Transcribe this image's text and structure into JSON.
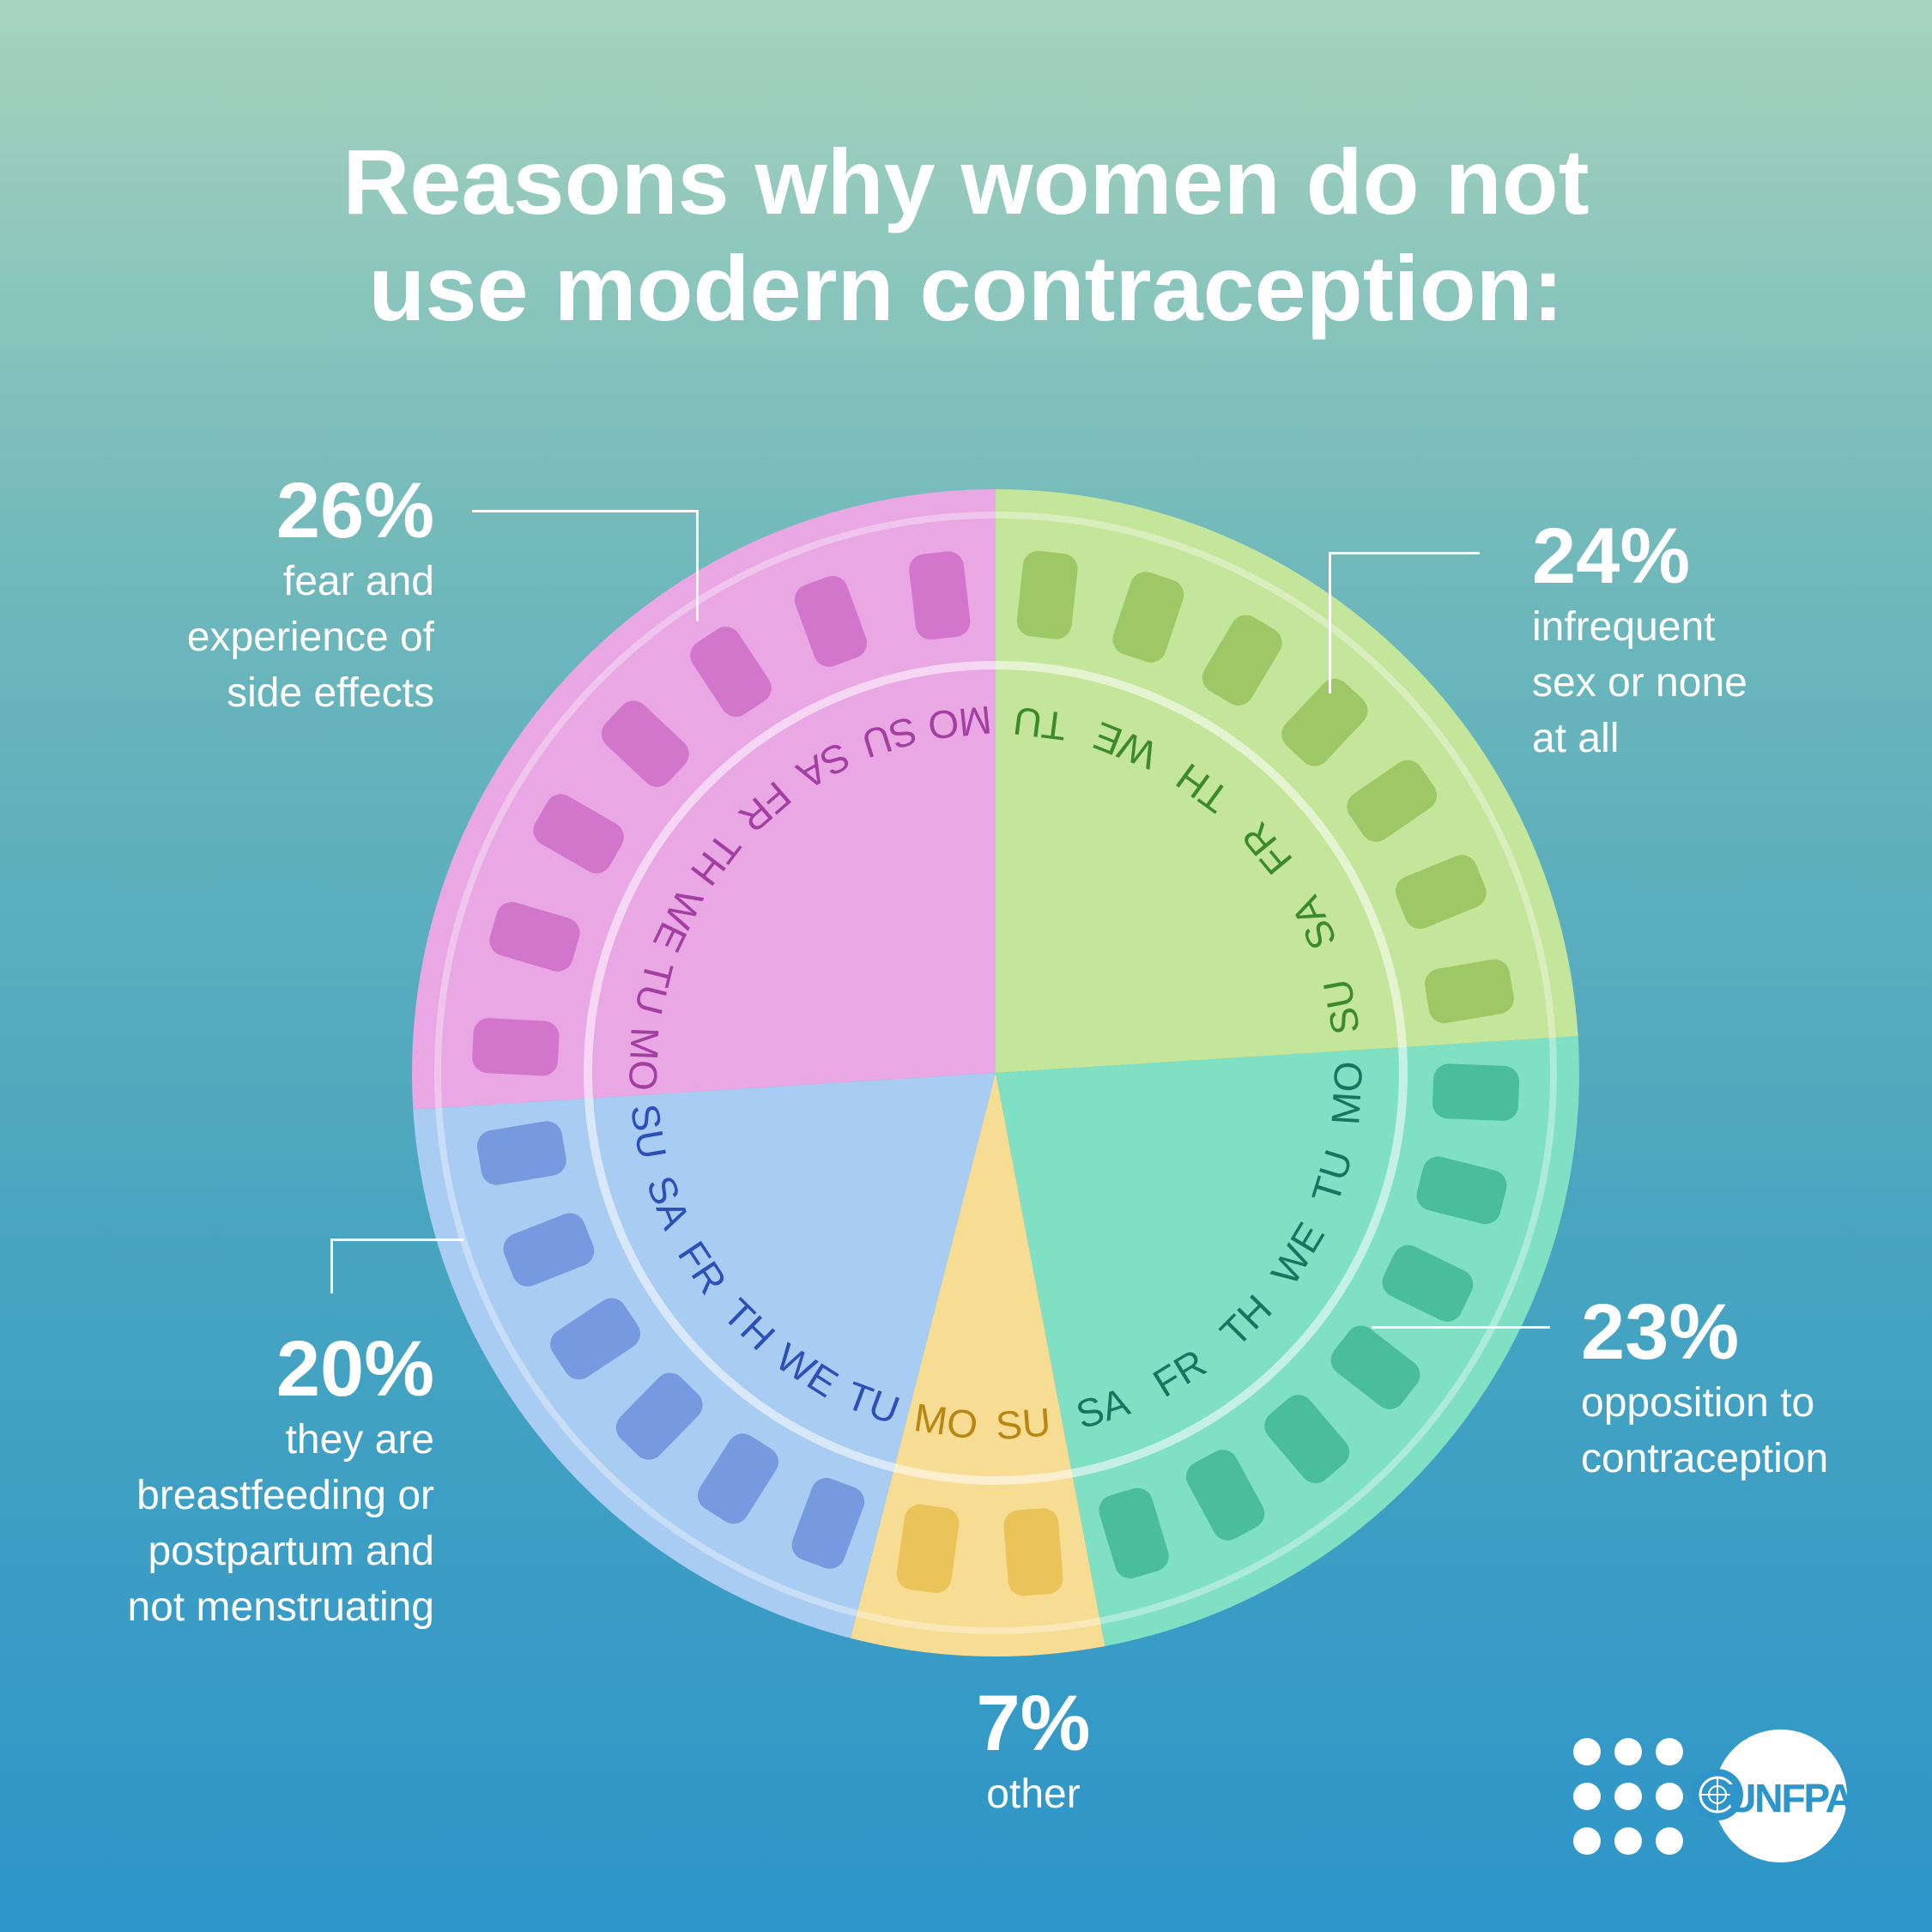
{
  "title_line1": "Reasons why women do not",
  "title_line2": "use modern contraception:",
  "chart_data": {
    "type": "pie",
    "title": "Reasons why women do not use modern contraception:",
    "categories": [
      "fear and experience of side effects",
      "infrequent sex or none at all",
      "opposition to contraception",
      "other",
      "they are breastfeeding or postpartum and not menstruating"
    ],
    "values": [
      26,
      24,
      23,
      7,
      20
    ],
    "unit": "%",
    "colors": [
      "#e9a7e4",
      "#c4e69a",
      "#7fe0c4",
      "#f7dc93",
      "#a9cdf2"
    ]
  },
  "labels": [
    {
      "pct": "26%",
      "desc": [
        "fear and",
        "experience of",
        "side effects"
      ]
    },
    {
      "pct": "24%",
      "desc": [
        "infrequent",
        "sex or none",
        "at all"
      ]
    },
    {
      "pct": "23%",
      "desc": [
        "opposition to",
        "contraception"
      ]
    },
    {
      "pct": "7%",
      "desc": [
        "other"
      ]
    },
    {
      "pct": "20%",
      "desc": [
        "they are",
        "breastfeeding or",
        "postpartum and",
        "not menstruating"
      ]
    }
  ],
  "days": {
    "seg0": [
      "MO",
      "TU",
      "WE",
      "TH",
      "FR",
      "SA",
      "SU",
      "MO"
    ],
    "seg1": [
      "TU",
      "WE",
      "TH",
      "FR",
      "SA",
      "SU"
    ],
    "seg2": [
      "MO",
      "TU",
      "WE",
      "TH",
      "FR",
      "SA"
    ],
    "seg3": [
      "SU",
      "MO"
    ],
    "seg4": [
      "TU",
      "WE",
      "TH",
      "FR",
      "SA",
      "SU"
    ]
  },
  "logo_text": "UNFPA"
}
